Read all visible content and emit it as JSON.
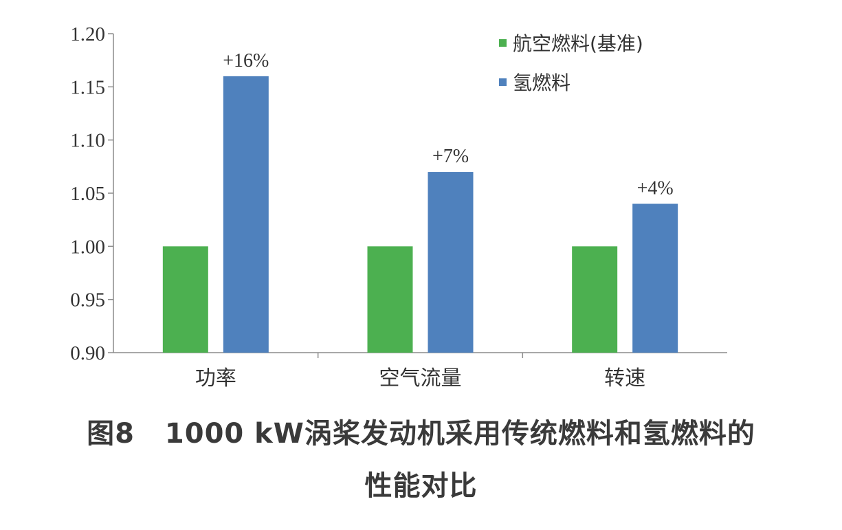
{
  "chart_data": {
    "type": "bar",
    "categories": [
      "功率",
      "空气流量",
      "转速"
    ],
    "series": [
      {
        "name": "航空燃料(基准)",
        "values": [
          1.0,
          1.0,
          1.0
        ],
        "color": "#4cb050"
      },
      {
        "name": "氢燃料",
        "values": [
          1.16,
          1.07,
          1.04
        ],
        "color": "#4f81bd"
      }
    ],
    "data_labels": [
      "+16%",
      "+7%",
      "+4%"
    ],
    "ylim": [
      0.9,
      1.2
    ],
    "yticks": [
      "1.20",
      "1.15",
      "1.10",
      "1.05",
      "1.00",
      "0.95",
      "0.90"
    ],
    "xlabel": "",
    "ylabel": "",
    "grid": false,
    "legend_position": "top-right"
  },
  "caption": {
    "figure_number": "图8",
    "line1": "1000 kW涡桨发动机采用传统燃料和氢燃料的",
    "line2": "性能对比"
  }
}
